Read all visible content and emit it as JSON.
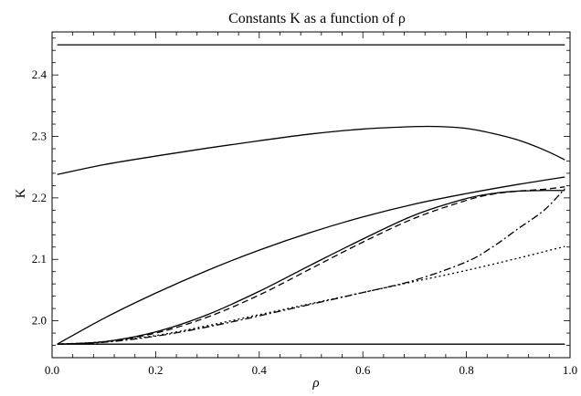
{
  "chart_data": {
    "type": "line",
    "title": "Constants K as a function of ρ",
    "xlabel": "ρ",
    "ylabel": "K",
    "xlim": [
      0.0,
      1.0
    ],
    "ylim": [
      1.94,
      2.47
    ],
    "grid": false,
    "x_ticks": [
      0.0,
      0.2,
      0.4,
      0.6,
      0.8,
      1.0
    ],
    "x_tick_labels": [
      "0.0",
      "0.2",
      "0.4",
      "0.6",
      "0.8",
      "1.0"
    ],
    "y_ticks": [
      2.0,
      2.1,
      2.2,
      2.3,
      2.4
    ],
    "y_tick_labels": [
      "2.0",
      "2.1",
      "2.2",
      "2.3",
      "2.4"
    ],
    "series": [
      {
        "style": "solid",
        "x": [
          0.01,
          0.99
        ],
        "y": [
          2.449,
          2.449
        ]
      },
      {
        "style": "solid",
        "x": [
          0.01,
          0.1,
          0.2,
          0.3,
          0.4,
          0.5,
          0.6,
          0.7,
          0.75,
          0.8,
          0.85,
          0.9,
          0.95,
          0.99
        ],
        "y": [
          2.238,
          2.254,
          2.268,
          2.281,
          2.293,
          2.304,
          2.312,
          2.316,
          2.316,
          2.313,
          2.305,
          2.294,
          2.278,
          2.262
        ]
      },
      {
        "style": "solid",
        "x": [
          0.01,
          0.1,
          0.2,
          0.3,
          0.4,
          0.5,
          0.6,
          0.7,
          0.8,
          0.9,
          0.99
        ],
        "y": [
          1.962,
          2.004,
          2.045,
          2.082,
          2.115,
          2.144,
          2.169,
          2.19,
          2.207,
          2.222,
          2.234
        ]
      },
      {
        "style": "solid",
        "x": [
          0.01,
          0.1,
          0.2,
          0.3,
          0.4,
          0.5,
          0.6,
          0.7,
          0.8,
          0.85,
          0.9,
          0.95,
          0.99
        ],
        "y": [
          1.962,
          1.966,
          1.982,
          2.01,
          2.048,
          2.091,
          2.133,
          2.172,
          2.199,
          2.207,
          2.211,
          2.212,
          2.212
        ]
      },
      {
        "style": "dashed",
        "x": [
          0.01,
          0.1,
          0.2,
          0.3,
          0.4,
          0.5,
          0.6,
          0.7,
          0.8,
          0.85,
          0.9,
          0.95,
          0.99
        ],
        "y": [
          1.962,
          1.966,
          1.98,
          2.006,
          2.042,
          2.085,
          2.128,
          2.167,
          2.196,
          2.206,
          2.211,
          2.214,
          2.218
        ]
      },
      {
        "style": "dash-dot",
        "x": [
          0.01,
          0.1,
          0.2,
          0.3,
          0.4,
          0.5,
          0.6,
          0.7,
          0.8,
          0.85,
          0.9,
          0.95,
          0.99
        ],
        "y": [
          1.962,
          1.965,
          1.975,
          1.99,
          2.008,
          2.027,
          2.046,
          2.066,
          2.096,
          2.12,
          2.15,
          2.18,
          2.215
        ]
      },
      {
        "style": "dotted",
        "x": [
          0.01,
          0.1,
          0.2,
          0.3,
          0.4,
          0.5,
          0.6,
          0.7,
          0.8,
          0.9,
          0.99
        ],
        "y": [
          1.962,
          1.966,
          1.976,
          1.992,
          2.01,
          2.028,
          2.046,
          2.064,
          2.082,
          2.102,
          2.121
        ]
      },
      {
        "style": "solid",
        "x": [
          0.01,
          0.99
        ],
        "y": [
          1.962,
          1.962
        ]
      }
    ]
  }
}
